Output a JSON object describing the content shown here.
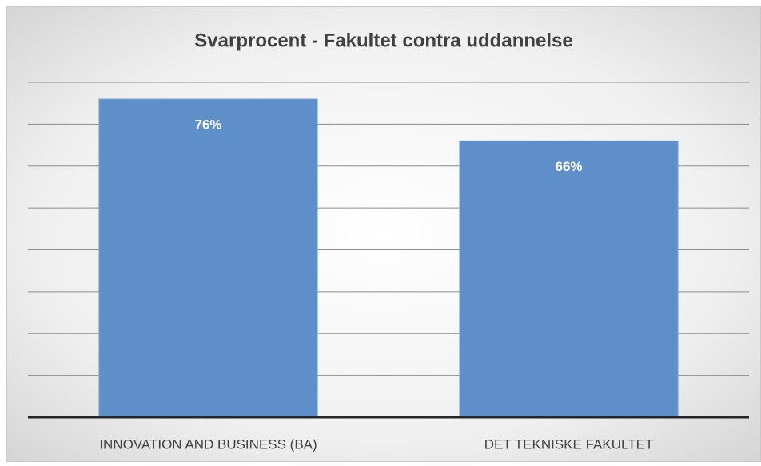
{
  "chart_data": {
    "type": "bar",
    "title": "Svarprocent - Fakultet contra uddannelse",
    "categories": [
      "INNOVATION AND BUSINESS (BA)",
      "DET TEKNISKE FAKULTET"
    ],
    "values": [
      76,
      66
    ],
    "value_labels": [
      "76%",
      "66%"
    ],
    "color": "#5f8fc9",
    "ylim": [
      0,
      80
    ],
    "yticks": [
      0,
      10,
      20,
      30,
      40,
      50,
      60,
      70,
      80
    ],
    "grid": true
  }
}
